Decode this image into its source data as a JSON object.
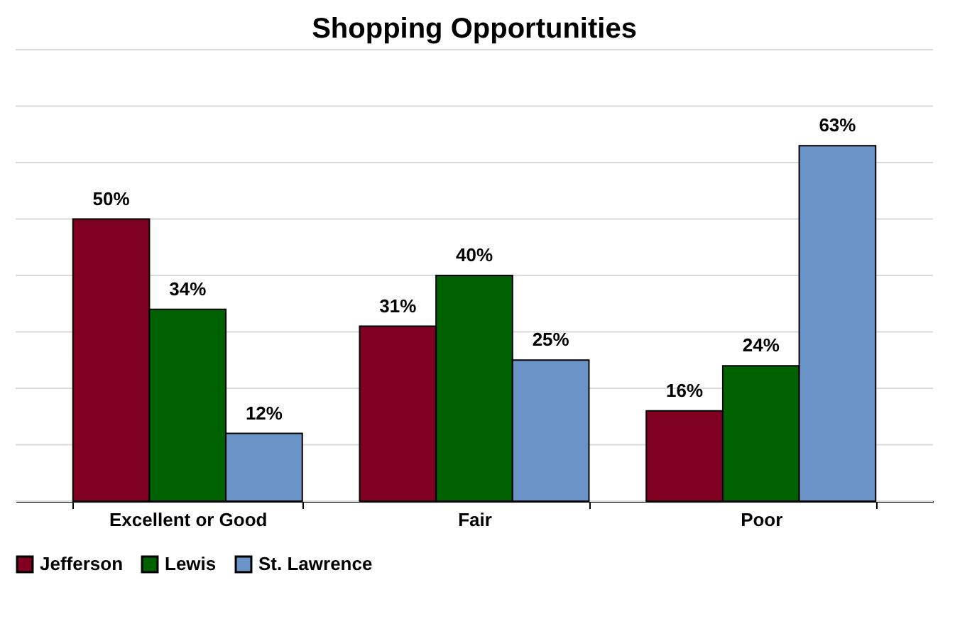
{
  "chart_data": {
    "type": "bar",
    "title": "Shopping Opportunities",
    "categories": [
      "Excellent or Good",
      "Fair",
      "Poor"
    ],
    "series": [
      {
        "name": "Jefferson",
        "color": "#7f0020",
        "values": [
          50,
          31,
          16
        ],
        "value_labels": [
          "50%",
          "31%",
          "16%"
        ]
      },
      {
        "name": "Lewis",
        "color": "#006100",
        "values": [
          34,
          40,
          24
        ],
        "value_labels": [
          "34%",
          "40%",
          "24%"
        ]
      },
      {
        "name": "St. Lawrence",
        "color": "#6a93c8",
        "values": [
          12,
          25,
          63
        ],
        "value_labels": [
          "12%",
          "25%",
          "63%"
        ]
      }
    ],
    "ylim": [
      0,
      80
    ],
    "yticks": [
      {
        "value": 0,
        "label": null
      },
      {
        "value": 10,
        "label": null
      },
      {
        "value": 20,
        "label": null
      },
      {
        "value": 30,
        "label": null
      },
      {
        "value": 40,
        "label": null
      },
      {
        "value": 50,
        "label": null
      },
      {
        "value": 60,
        "label": null
      },
      {
        "value": 70,
        "label": null
      },
      {
        "value": 80,
        "label": null
      }
    ],
    "grid": "y",
    "legend": "bottom",
    "tick_labels": "x"
  }
}
